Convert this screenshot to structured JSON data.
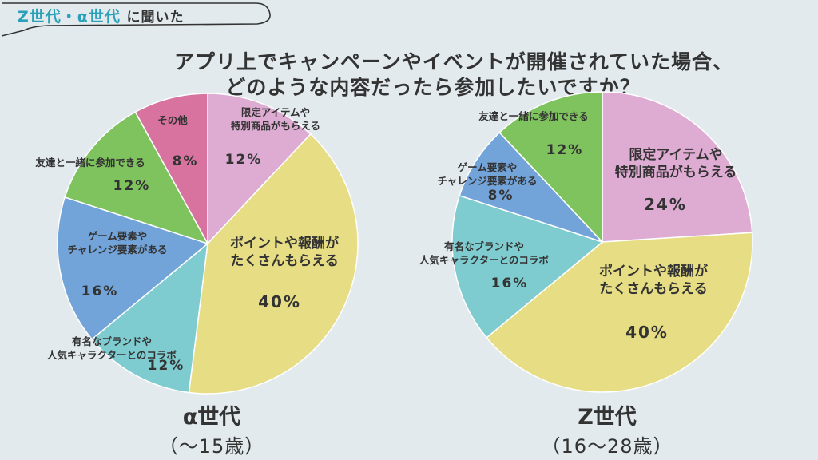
{
  "header": {
    "badge_highlight": "Z世代・α世代",
    "badge_rest": "に聞いた",
    "title_line1": "アプリ上でキャンペーンやイベントが開催されていた場合、",
    "title_line2": "どのような内容だったら参加したいですか？"
  },
  "colors": {
    "background": "#e2eaee",
    "accent": "#2aa1b8"
  },
  "chart_data": [
    {
      "type": "pie",
      "name": "α世代",
      "subtitle": "（〜15歳）",
      "slices": [
        {
          "label": [
            "限定アイテムや",
            "特別商品がもらえる"
          ],
          "value": 12,
          "pct": "12%",
          "color": "#deacd3"
        },
        {
          "label": [
            "ポイントや報酬が",
            "たくさんもらえる"
          ],
          "value": 40,
          "pct": "40%",
          "color": "#e6dd84"
        },
        {
          "label": [
            "有名なブランドや",
            "人気キャラクターとのコラボ"
          ],
          "value": 12,
          "pct": "12%",
          "color": "#7fccd0"
        },
        {
          "label": [
            "ゲーム要素や",
            "チャレンジ要素がある"
          ],
          "value": 16,
          "pct": "16%",
          "color": "#72a3d9"
        },
        {
          "label": [
            "友達と一緒に参加できる"
          ],
          "value": 12,
          "pct": "12%",
          "color": "#7fc35e"
        },
        {
          "label": [
            "その他"
          ],
          "value": 8,
          "pct": "8%",
          "color": "#d8739f"
        }
      ]
    },
    {
      "type": "pie",
      "name": "Z世代",
      "subtitle": "（16〜28歳）",
      "slices": [
        {
          "label": [
            "限定アイテムや",
            "特別商品がもらえる"
          ],
          "value": 24,
          "pct": "24%",
          "color": "#deacd3"
        },
        {
          "label": [
            "ポイントや報酬が",
            "たくさんもらえる"
          ],
          "value": 40,
          "pct": "40%",
          "color": "#e6dd84"
        },
        {
          "label": [
            "有名なブランドや",
            "人気キャラクターとのコラボ"
          ],
          "value": 16,
          "pct": "16%",
          "color": "#7fccd0"
        },
        {
          "label": [
            "ゲーム要素や",
            "チャレンジ要素がある"
          ],
          "value": 8,
          "pct": "8%",
          "color": "#72a3d9"
        },
        {
          "label": [
            "友達と一緒に参加できる"
          ],
          "value": 12,
          "pct": "12%",
          "color": "#7fc35e"
        }
      ]
    }
  ]
}
